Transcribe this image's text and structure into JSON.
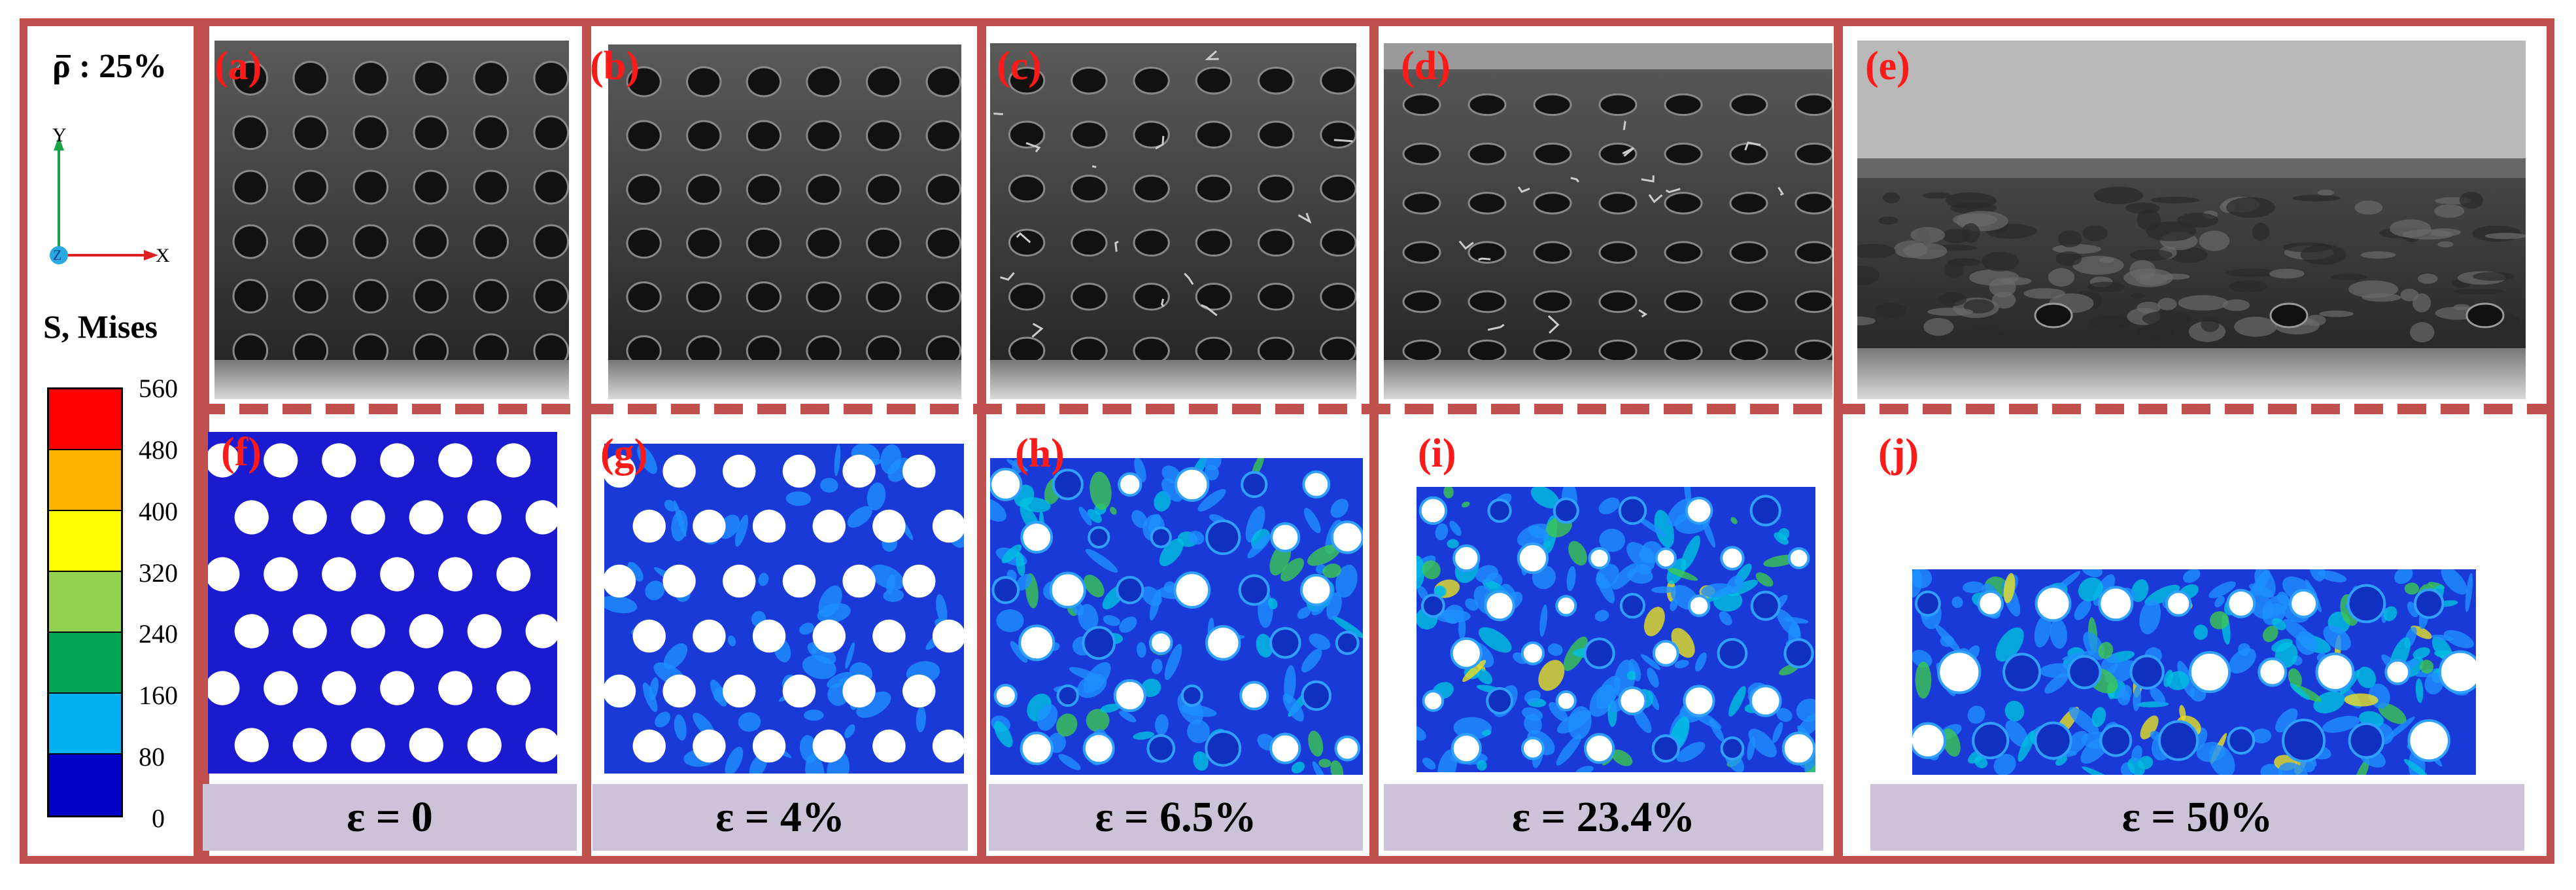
{
  "density_label": "ρ : 25%",
  "axes": {
    "y": "Y",
    "x": "X",
    "z": "Z"
  },
  "stress_title": "S, Mises",
  "colorbar": {
    "ticks": [
      "560",
      "480",
      "400",
      "320",
      "240",
      "160",
      "80",
      "0"
    ],
    "colors": [
      "#ff0000",
      "#ffb400",
      "#ffff00",
      "#92d050",
      "#00a651",
      "#00b0f0",
      "#0000c8"
    ]
  },
  "panels": [
    {
      "top_tag": "(a)",
      "bottom_tag": "(f)",
      "strain": "ε =  0",
      "level": 0
    },
    {
      "top_tag": "(b)",
      "bottom_tag": "(g)",
      "strain": "ε =  4%",
      "level": 1
    },
    {
      "top_tag": "(c)",
      "bottom_tag": "(h)",
      "strain": "ε =  6.5%",
      "level": 2
    },
    {
      "top_tag": "(d)",
      "bottom_tag": "(i)",
      "strain": "ε =  23.4%",
      "level": 3
    },
    {
      "top_tag": "(e)",
      "bottom_tag": "(j)",
      "strain": "ε =  50%",
      "level": 4
    }
  ],
  "colors": {
    "frame": "#c0504d",
    "tag": "#ff1a1a",
    "strain_bg": "#ccc3d8"
  }
}
